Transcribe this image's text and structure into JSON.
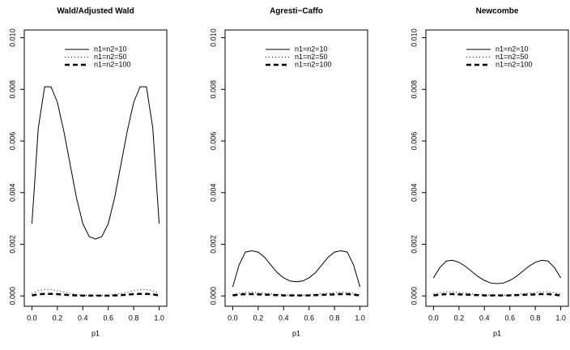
{
  "chart_data": [
    {
      "type": "line",
      "title": "Wald/Adjusted Wald",
      "x_label": "p1",
      "x": [
        0,
        0.05,
        0.1,
        0.15,
        0.2,
        0.25,
        0.3,
        0.35,
        0.4,
        0.45,
        0.5,
        0.55,
        0.6,
        0.65,
        0.7,
        0.75,
        0.8,
        0.85,
        0.9,
        0.95,
        1
      ],
      "series": [
        {
          "name": "n1=n2=10",
          "color": "#000000",
          "dash": "solid",
          "line_width": 1,
          "values": [
            0.0028,
            0.0065,
            0.0081,
            0.0081,
            0.0075,
            0.0064,
            0.0051,
            0.0038,
            0.0028,
            0.0023,
            0.0022,
            0.0023,
            0.0028,
            0.0038,
            0.0051,
            0.0064,
            0.0075,
            0.0081,
            0.0081,
            0.0065,
            0.0028
          ]
        },
        {
          "name": "n1=n2=50",
          "color": "#000000",
          "dash": "dotted",
          "line_width": 1,
          "values": [
            0.0001,
            0.0002,
            0.00025,
            0.00025,
            0.0002,
            0.00015,
            0.0001,
            5e-05,
            3e-05,
            2e-05,
            2e-05,
            2e-05,
            3e-05,
            5e-05,
            0.0001,
            0.00015,
            0.0002,
            0.00025,
            0.00025,
            0.0002,
            0.0001
          ]
        },
        {
          "name": "n1=n2=100",
          "color": "#000000",
          "dash": "dashed",
          "line_width": 2.5,
          "values": [
            2e-05,
            6e-05,
            8e-05,
            8e-05,
            7e-05,
            5e-05,
            3e-05,
            2e-05,
            1e-05,
            1e-05,
            1e-05,
            1e-05,
            1e-05,
            2e-05,
            3e-05,
            5e-05,
            7e-05,
            8e-05,
            8e-05,
            6e-05,
            2e-05
          ]
        }
      ],
      "xlim": [
        -0.06,
        1.06
      ],
      "ylim": [
        -0.0004,
        0.0103
      ],
      "xticks": [
        {
          "value": 0,
          "label": "0.0"
        },
        {
          "value": 0.2,
          "label": "0.2"
        },
        {
          "value": 0.4,
          "label": "0.4"
        },
        {
          "value": 0.6,
          "label": "0.6"
        },
        {
          "value": 0.8,
          "label": "0.8"
        },
        {
          "value": 1,
          "label": "1.0"
        }
      ],
      "yticks": [
        {
          "value": 0,
          "label": "0.000"
        },
        {
          "value": 0.002,
          "label": "0.002"
        },
        {
          "value": 0.004,
          "label": "0.004"
        },
        {
          "value": 0.006,
          "label": "0.006"
        },
        {
          "value": 0.008,
          "label": "0.008"
        },
        {
          "value": 0.01,
          "label": "0.010"
        }
      ],
      "legend": "top-right"
    },
    {
      "type": "line",
      "title": "Agresti−Caffo",
      "x_label": "p1",
      "x": [
        0,
        0.05,
        0.1,
        0.15,
        0.2,
        0.25,
        0.3,
        0.35,
        0.4,
        0.45,
        0.5,
        0.55,
        0.6,
        0.65,
        0.7,
        0.75,
        0.8,
        0.85,
        0.9,
        0.95,
        1
      ],
      "series": [
        {
          "name": "n1=n2=10",
          "color": "#000000",
          "dash": "solid",
          "line_width": 1,
          "values": [
            0.00035,
            0.0012,
            0.0017,
            0.00175,
            0.0017,
            0.0015,
            0.0012,
            0.0009,
            0.0007,
            0.00058,
            0.00055,
            0.00058,
            0.0007,
            0.0009,
            0.0012,
            0.0015,
            0.0017,
            0.00175,
            0.0017,
            0.0012,
            0.00035
          ]
        },
        {
          "name": "n1=n2=50",
          "color": "#000000",
          "dash": "dotted",
          "line_width": 1,
          "values": [
            5e-05,
            0.0001,
            0.00014,
            0.00015,
            0.00013,
            0.0001,
            8e-05,
            6e-05,
            4e-05,
            3e-05,
            3e-05,
            3e-05,
            4e-05,
            6e-05,
            8e-05,
            0.0001,
            0.00013,
            0.00015,
            0.00014,
            0.0001,
            5e-05
          ]
        },
        {
          "name": "n1=n2=100",
          "color": "#000000",
          "dash": "dashed",
          "line_width": 2.5,
          "values": [
            2e-05,
            5e-05,
            7e-05,
            7e-05,
            6e-05,
            5e-05,
            4e-05,
            3e-05,
            2e-05,
            2e-05,
            2e-05,
            2e-05,
            2e-05,
            3e-05,
            4e-05,
            5e-05,
            6e-05,
            7e-05,
            7e-05,
            5e-05,
            2e-05
          ]
        }
      ],
      "xlim": [
        -0.06,
        1.06
      ],
      "ylim": [
        -0.0004,
        0.0103
      ],
      "xticks": [
        {
          "value": 0,
          "label": "0.0"
        },
        {
          "value": 0.2,
          "label": "0.2"
        },
        {
          "value": 0.4,
          "label": "0.4"
        },
        {
          "value": 0.6,
          "label": "0.6"
        },
        {
          "value": 0.8,
          "label": "0.8"
        },
        {
          "value": 1,
          "label": "1.0"
        }
      ],
      "yticks": [
        {
          "value": 0,
          "label": "0.000"
        },
        {
          "value": 0.002,
          "label": "0.002"
        },
        {
          "value": 0.004,
          "label": "0.004"
        },
        {
          "value": 0.006,
          "label": "0.006"
        },
        {
          "value": 0.008,
          "label": "0.008"
        },
        {
          "value": 0.01,
          "label": "0.010"
        }
      ],
      "legend": "top-right"
    },
    {
      "type": "line",
      "title": "Newcombe",
      "x_label": "p1",
      "x": [
        0,
        0.05,
        0.1,
        0.15,
        0.2,
        0.25,
        0.3,
        0.35,
        0.4,
        0.45,
        0.5,
        0.55,
        0.6,
        0.65,
        0.7,
        0.75,
        0.8,
        0.85,
        0.9,
        0.95,
        1
      ],
      "series": [
        {
          "name": "n1=n2=10",
          "color": "#000000",
          "dash": "solid",
          "line_width": 1,
          "values": [
            0.0007,
            0.0011,
            0.00135,
            0.00138,
            0.0013,
            0.00115,
            0.00095,
            0.00075,
            0.0006,
            0.0005,
            0.00048,
            0.0005,
            0.0006,
            0.00075,
            0.00095,
            0.00115,
            0.0013,
            0.00138,
            0.00135,
            0.0011,
            0.0007
          ]
        },
        {
          "name": "n1=n2=50",
          "color": "#000000",
          "dash": "dotted",
          "line_width": 1,
          "values": [
            8e-05,
            0.00013,
            0.00016,
            0.00016,
            0.00014,
            0.00011,
            8e-05,
            6e-05,
            4e-05,
            3e-05,
            3e-05,
            3e-05,
            4e-05,
            6e-05,
            8e-05,
            0.00011,
            0.00014,
            0.00016,
            0.00016,
            0.00013,
            8e-05
          ]
        },
        {
          "name": "n1=n2=100",
          "color": "#000000",
          "dash": "dashed",
          "line_width": 2.5,
          "values": [
            2e-05,
            5e-05,
            7e-05,
            7e-05,
            6e-05,
            5e-05,
            4e-05,
            3e-05,
            2e-05,
            2e-05,
            2e-05,
            2e-05,
            2e-05,
            3e-05,
            4e-05,
            5e-05,
            6e-05,
            7e-05,
            7e-05,
            5e-05,
            2e-05
          ]
        }
      ],
      "xlim": [
        -0.06,
        1.06
      ],
      "ylim": [
        -0.0004,
        0.0103
      ],
      "xticks": [
        {
          "value": 0,
          "label": "0.0"
        },
        {
          "value": 0.2,
          "label": "0.2"
        },
        {
          "value": 0.4,
          "label": "0.4"
        },
        {
          "value": 0.6,
          "label": "0.6"
        },
        {
          "value": 0.8,
          "label": "0.8"
        },
        {
          "value": 1,
          "label": "1.0"
        }
      ],
      "yticks": [
        {
          "value": 0,
          "label": "0.000"
        },
        {
          "value": 0.002,
          "label": "0.002"
        },
        {
          "value": 0.004,
          "label": "0.004"
        },
        {
          "value": 0.006,
          "label": "0.006"
        },
        {
          "value": 0.008,
          "label": "0.008"
        },
        {
          "value": 0.01,
          "label": "0.010"
        }
      ],
      "legend": "top-right"
    }
  ]
}
